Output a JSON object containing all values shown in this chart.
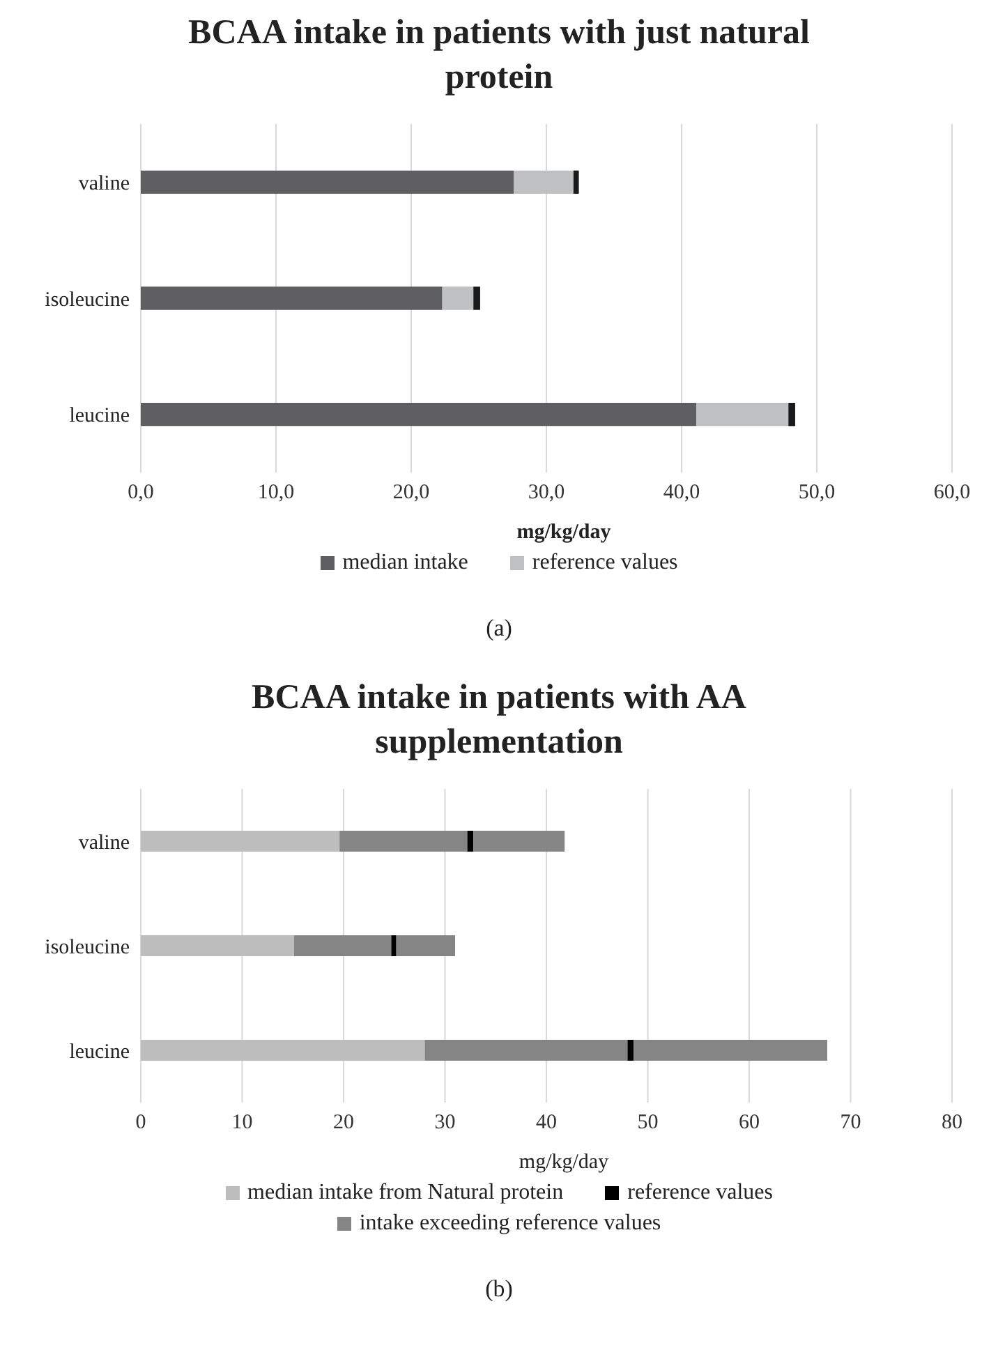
{
  "chart_data": [
    {
      "type": "bar",
      "title": "BCAA intake in patients with just natural protein",
      "xlabel": "mg/kg/day",
      "orientation": "horizontal",
      "stacked": true,
      "categories": [
        "valine",
        "isoleucine",
        "leucine"
      ],
      "series": [
        {
          "name": "median intake",
          "color": "#5f5f61",
          "values": [
            27.6,
            22.3,
            41.1
          ]
        },
        {
          "name": "reference values",
          "color": "#bfc0c2",
          "values": [
            4.4,
            2.3,
            6.8
          ]
        },
        {
          "color": "#1a1a1a",
          "values": [
            0.4,
            0.5,
            0.5
          ]
        }
      ],
      "xlim": [
        0,
        60
      ],
      "xticks": [
        {
          "value": 0,
          "label": "0,0"
        },
        {
          "value": 10,
          "label": "10,0"
        },
        {
          "value": 20,
          "label": "20,0"
        },
        {
          "value": 30,
          "label": "30,0"
        },
        {
          "value": 40,
          "label": "40,0"
        },
        {
          "value": 50,
          "label": "50,0"
        },
        {
          "value": 60,
          "label": "60,0"
        }
      ],
      "grid": "x",
      "legend": "bottom",
      "annotations": [
        "(a)"
      ]
    },
    {
      "type": "bar",
      "title": "BCAA intake in patients with AA supplementation",
      "xlabel": "mg/kg/day",
      "orientation": "horizontal",
      "stacked": true,
      "categories": [
        "valine",
        "isoleucine",
        "leucine"
      ],
      "series": [
        {
          "name": "median intake from Natural protein",
          "color": "#bdbdbd",
          "values": [
            19.6,
            15.1,
            28.0
          ]
        },
        {
          "color": "#858585",
          "values": [
            12.6,
            9.6,
            20.0
          ]
        },
        {
          "name": "reference values",
          "color": "#000000",
          "values": [
            0.6,
            0.5,
            0.6
          ]
        },
        {
          "name": "intake exceeding reference values",
          "color": "#858585",
          "values": [
            9.0,
            5.8,
            19.1
          ]
        }
      ],
      "xlim": [
        0,
        80
      ],
      "xticks": [
        0,
        10,
        20,
        30,
        40,
        50,
        60,
        70,
        80
      ],
      "grid": "x",
      "legend": "bottom",
      "annotations": [
        "(b)"
      ]
    }
  ]
}
